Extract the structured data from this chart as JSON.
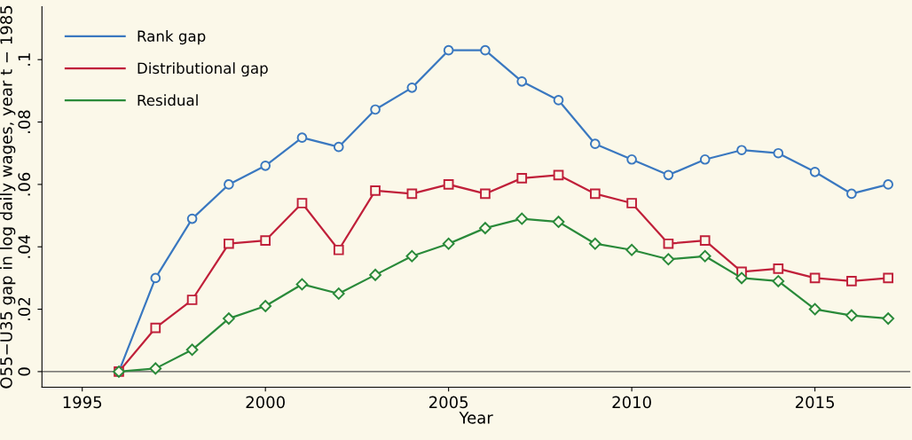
{
  "chart_data": {
    "type": "line",
    "xlabel": "Year",
    "ylabel": "O55−U35 gap in log daily wages, year t − 1985",
    "x": [
      1996,
      1997,
      1998,
      1999,
      2000,
      2001,
      2002,
      2003,
      2004,
      2005,
      2006,
      2007,
      2008,
      2009,
      2010,
      2011,
      2012,
      2013,
      2014,
      2015,
      2016,
      2017
    ],
    "series": [
      {
        "name": "Rank gap",
        "color": "#3a78c0",
        "marker": "circle",
        "values": [
          0,
          0.03,
          0.049,
          0.06,
          0.066,
          0.075,
          0.072,
          0.084,
          0.091,
          0.103,
          0.103,
          0.093,
          0.087,
          0.073,
          0.068,
          0.063,
          0.068,
          0.071,
          0.07,
          0.064,
          0.057,
          0.06
        ]
      },
      {
        "name": "Distributional gap",
        "color": "#c0203a",
        "marker": "square",
        "values": [
          0,
          0.014,
          0.023,
          0.041,
          0.042,
          0.054,
          0.039,
          0.058,
          0.057,
          0.06,
          0.057,
          0.062,
          0.063,
          0.057,
          0.054,
          0.041,
          0.042,
          0.032,
          0.033,
          0.03,
          0.029,
          0.03
        ]
      },
      {
        "name": "Residual",
        "color": "#2a8a3a",
        "marker": "diamond",
        "values": [
          0,
          0.001,
          0.007,
          0.017,
          0.021,
          0.028,
          0.025,
          0.031,
          0.037,
          0.041,
          0.046,
          0.049,
          0.048,
          0.041,
          0.039,
          0.036,
          0.037,
          0.03,
          0.029,
          0.02,
          0.018,
          0.017
        ]
      }
    ],
    "xlim": [
      1993.9,
      2017.6
    ],
    "xticks": [
      1995,
      2000,
      2005,
      2010,
      2015
    ],
    "ylim": [
      -0.005,
      0.117
    ],
    "yticks": [
      {
        "value": 0,
        "label": "0"
      },
      {
        "value": 0.02,
        "label": ".02"
      },
      {
        "value": 0.04,
        "label": ".04"
      },
      {
        "value": 0.06,
        "label": ".06"
      },
      {
        "value": 0.08,
        "label": ".08"
      },
      {
        "value": 0.1,
        "label": ".1"
      }
    ],
    "ref_lines": [
      {
        "axis": "y",
        "value": 0,
        "color": "#555555"
      }
    ],
    "grid": false,
    "legend": "top left",
    "line_style": "solid"
  }
}
